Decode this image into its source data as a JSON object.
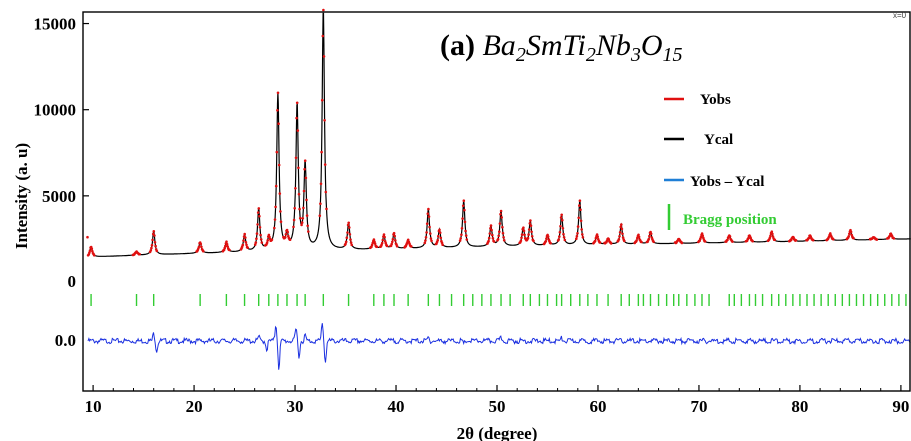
{
  "chart_data": {
    "type": "line",
    "title_prefix": "(a) ",
    "title_formula": [
      {
        "t": "Ba",
        "sub": false
      },
      {
        "t": "2",
        "sub": true
      },
      {
        "t": "SmTi",
        "sub": false
      },
      {
        "t": "2",
        "sub": true
      },
      {
        "t": "Nb",
        "sub": false
      },
      {
        "t": "3",
        "sub": true
      },
      {
        "t": "O",
        "sub": false
      },
      {
        "t": "15",
        "sub": true
      }
    ],
    "corner_text": "x=0",
    "xlabel": "2θ (degree)",
    "ylabel": "Intensity (a. u)",
    "xlim": [
      9,
      91
    ],
    "x_ticks": [
      10,
      20,
      30,
      40,
      50,
      60,
      70,
      80,
      90
    ],
    "x_tick_labels": [
      "10",
      "20",
      "30",
      "40",
      "50",
      "60",
      "70",
      "80",
      "90"
    ],
    "intensity_ticks": [
      5000,
      10000,
      15000
    ],
    "intensity_tick_labels": [
      "5000",
      "10000",
      "15000"
    ],
    "zero_label": "0",
    "diff_zero_label": "0.0",
    "colors": {
      "yobs": "#e01010",
      "ycal": "#000000",
      "diff": "#1a2fe0",
      "bragg": "#33cc33",
      "legend_diff": "#1f7fd6"
    },
    "legend": [
      {
        "label": "Yobs",
        "color": "#e01010",
        "kind": "line"
      },
      {
        "label": "Ycal",
        "color": "#000000",
        "kind": "line"
      },
      {
        "label": "Yobs – Ycal",
        "color": "#1f7fd6",
        "kind": "line"
      },
      {
        "label": "Bragg position",
        "color": "#33cc33",
        "kind": "tick"
      }
    ],
    "background": {
      "x": [
        9.5,
        20,
        30,
        40,
        50,
        60,
        70,
        80,
        91
      ],
      "y": [
        1450,
        1650,
        1800,
        1900,
        2050,
        2150,
        2250,
        2350,
        2500
      ]
    },
    "peaks": [
      {
        "x": 9.8,
        "y": 2050
      },
      {
        "x": 14.3,
        "y": 1750
      },
      {
        "x": 16.0,
        "y": 2950
      },
      {
        "x": 20.6,
        "y": 2300
      },
      {
        "x": 23.2,
        "y": 2300
      },
      {
        "x": 25.0,
        "y": 2700
      },
      {
        "x": 26.4,
        "y": 4200
      },
      {
        "x": 27.4,
        "y": 2400
      },
      {
        "x": 28.3,
        "y": 10900
      },
      {
        "x": 29.2,
        "y": 2600
      },
      {
        "x": 30.2,
        "y": 10200
      },
      {
        "x": 31.0,
        "y": 6700
      },
      {
        "x": 32.8,
        "y": 15800
      },
      {
        "x": 35.3,
        "y": 3400
      },
      {
        "x": 37.8,
        "y": 2400
      },
      {
        "x": 38.8,
        "y": 2700
      },
      {
        "x": 39.8,
        "y": 2800
      },
      {
        "x": 41.2,
        "y": 2400
      },
      {
        "x": 43.2,
        "y": 4200
      },
      {
        "x": 44.3,
        "y": 3000
      },
      {
        "x": 46.7,
        "y": 4700
      },
      {
        "x": 49.4,
        "y": 3200
      },
      {
        "x": 50.4,
        "y": 4100
      },
      {
        "x": 52.6,
        "y": 3100
      },
      {
        "x": 53.3,
        "y": 3500
      },
      {
        "x": 55.0,
        "y": 2700
      },
      {
        "x": 56.4,
        "y": 3900
      },
      {
        "x": 58.2,
        "y": 4700
      },
      {
        "x": 59.9,
        "y": 2700
      },
      {
        "x": 61.0,
        "y": 2500
      },
      {
        "x": 62.3,
        "y": 3300
      },
      {
        "x": 64.0,
        "y": 2700
      },
      {
        "x": 65.2,
        "y": 2900
      },
      {
        "x": 68.0,
        "y": 2500
      },
      {
        "x": 70.3,
        "y": 2800
      },
      {
        "x": 73.0,
        "y": 2700
      },
      {
        "x": 75.0,
        "y": 2700
      },
      {
        "x": 77.2,
        "y": 2900
      },
      {
        "x": 79.3,
        "y": 2600
      },
      {
        "x": 81.0,
        "y": 2700
      },
      {
        "x": 83.0,
        "y": 2800
      },
      {
        "x": 85.0,
        "y": 3000
      },
      {
        "x": 87.3,
        "y": 2600
      },
      {
        "x": 89.0,
        "y": 2800
      }
    ],
    "bragg_positions": [
      9.8,
      14.3,
      16.0,
      20.6,
      23.2,
      25.0,
      26.4,
      27.4,
      28.3,
      29.2,
      30.2,
      31.0,
      32.8,
      35.3,
      37.8,
      38.8,
      39.8,
      41.2,
      43.2,
      44.3,
      45.5,
      46.7,
      47.6,
      48.5,
      49.4,
      50.4,
      51.3,
      52.6,
      53.3,
      54.2,
      55.0,
      55.9,
      56.4,
      57.3,
      58.2,
      59.0,
      59.9,
      61.0,
      62.3,
      63.1,
      64.0,
      64.5,
      65.2,
      66.0,
      66.8,
      67.5,
      68.0,
      68.8,
      69.6,
      70.3,
      71.0,
      73.0,
      73.5,
      74.2,
      75.0,
      75.6,
      76.3,
      77.2,
      77.9,
      78.6,
      79.3,
      80.0,
      80.7,
      81.4,
      82.1,
      82.8,
      83.5,
      84.2,
      84.9,
      85.6,
      86.3,
      87.0,
      87.7,
      88.4,
      89.1,
      89.8,
      90.5
    ],
    "difference_spikes": [
      {
        "x": 16.0,
        "y": 0.35
      },
      {
        "x": 16.3,
        "y": -0.45
      },
      {
        "x": 26.4,
        "y": 0.2
      },
      {
        "x": 27.2,
        "y": -0.4
      },
      {
        "x": 28.1,
        "y": 0.75
      },
      {
        "x": 28.4,
        "y": -1.25
      },
      {
        "x": 30.1,
        "y": 0.55
      },
      {
        "x": 30.4,
        "y": -0.7
      },
      {
        "x": 31.0,
        "y": 0.25
      },
      {
        "x": 32.7,
        "y": 0.85
      },
      {
        "x": 33.0,
        "y": -0.95
      },
      {
        "x": 43.2,
        "y": 0.15
      },
      {
        "x": 46.7,
        "y": -0.15
      },
      {
        "x": 50.4,
        "y": 0.15
      },
      {
        "x": 56.4,
        "y": 0.12
      }
    ]
  }
}
